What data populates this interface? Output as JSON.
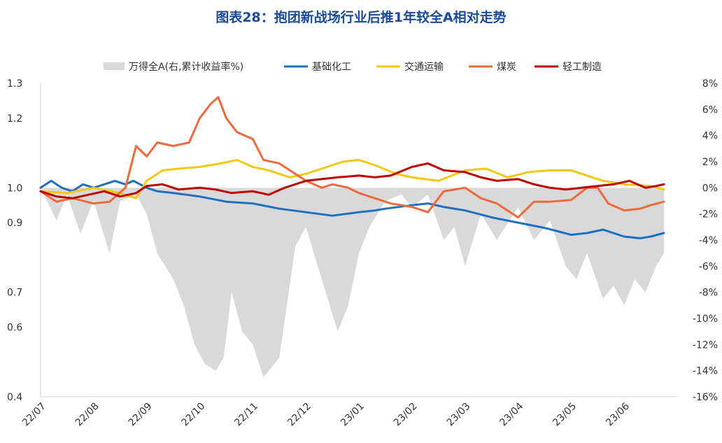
{
  "chart_data": {
    "type": "line",
    "title": "图表28：抱团新战场行业后推1年较全A相对走势",
    "categories": [
      "22/07",
      "22/08",
      "22/09",
      "22/10",
      "22/11",
      "22/12",
      "23/01",
      "23/02",
      "23/03",
      "23/04",
      "23/05",
      "23/06"
    ],
    "ylim_left": [
      0.4,
      1.3
    ],
    "yticks_left": [
      "1.3",
      "1.2",
      "1.0",
      "0.9",
      "0.7",
      "0.6",
      "0.4"
    ],
    "yticks_left_values": [
      1.3,
      1.2,
      1.0,
      0.9,
      0.7,
      0.6,
      0.4
    ],
    "ylim_right": [
      -16,
      8
    ],
    "yticks_right": [
      "8%",
      "6%",
      "4%",
      "2%",
      "0%",
      "-2%",
      "-4%",
      "-6%",
      "-8%",
      "-10%",
      "-12%",
      "-14%",
      "-16%"
    ],
    "yticks_right_values": [
      8,
      6,
      4,
      2,
      0,
      -2,
      -4,
      -6,
      -8,
      -10,
      -12,
      -14,
      -16
    ],
    "area_series": {
      "name": "万得全A(右,累计收益率%)",
      "color": "#d9d9d9",
      "axis": "right",
      "x": [
        0,
        0.3,
        0.5,
        0.75,
        1.0,
        1.3,
        1.5,
        1.8,
        2.0,
        2.2,
        2.5,
        2.7,
        2.9,
        3.1,
        3.3,
        3.45,
        3.6,
        3.8,
        4.0,
        4.2,
        4.5,
        4.8,
        5.0,
        5.3,
        5.6,
        5.8,
        6.0,
        6.2,
        6.5,
        6.8,
        7.0,
        7.3,
        7.6,
        7.8,
        8.0,
        8.3,
        8.6,
        9.0,
        9.3,
        9.6,
        9.9,
        10.1,
        10.3,
        10.6,
        10.8,
        11.0,
        11.2,
        11.4,
        11.6,
        11.75
      ],
      "values": [
        0,
        -2.5,
        -0.5,
        -3.5,
        -1,
        -5,
        -1,
        -0.5,
        -2,
        -5,
        -7,
        -9,
        -12,
        -13.5,
        -14,
        -13,
        -8,
        -11,
        -12,
        -14.5,
        -13,
        -4.5,
        -3,
        -7,
        -11,
        -9,
        -5,
        -3,
        -1,
        -0.5,
        -1.5,
        -0.5,
        -4,
        -3,
        -6,
        -2,
        -4,
        -1.5,
        -4,
        -2.5,
        -6,
        -7,
        -5,
        -8.5,
        -7.5,
        -9,
        -7,
        -8,
        -6,
        -5
      ]
    },
    "series": [
      {
        "name": "基础化工",
        "color": "#1f6fc1",
        "axis": "left",
        "x": [
          0,
          0.2,
          0.4,
          0.6,
          0.8,
          1.0,
          1.2,
          1.4,
          1.6,
          1.75,
          2.0,
          2.2,
          2.5,
          3.0,
          3.5,
          4.0,
          4.5,
          5.0,
          5.5,
          6.0,
          6.3,
          6.5,
          7.0,
          7.3,
          7.6,
          8.0,
          8.5,
          9.0,
          9.5,
          10.0,
          10.3,
          10.6,
          11.0,
          11.3,
          11.5,
          11.75
        ],
        "values": [
          1.0,
          1.02,
          1.0,
          0.99,
          1.01,
          1.0,
          1.01,
          1.02,
          1.01,
          1.02,
          1.0,
          0.99,
          0.985,
          0.975,
          0.96,
          0.955,
          0.94,
          0.93,
          0.92,
          0.93,
          0.935,
          0.94,
          0.95,
          0.955,
          0.945,
          0.935,
          0.915,
          0.9,
          0.885,
          0.865,
          0.87,
          0.88,
          0.86,
          0.855,
          0.86,
          0.87
        ]
      },
      {
        "name": "交通运输",
        "color": "#f2c811",
        "axis": "left",
        "x": [
          0,
          0.5,
          1.0,
          1.5,
          1.8,
          2.0,
          2.3,
          2.6,
          3.0,
          3.4,
          3.7,
          4.0,
          4.3,
          4.7,
          5.0,
          5.3,
          5.7,
          6.0,
          6.3,
          6.7,
          7.0,
          7.5,
          8.0,
          8.4,
          8.8,
          9.2,
          9.6,
          10.0,
          10.3,
          10.6,
          11.0,
          11.5,
          11.75
        ],
        "values": [
          0.99,
          0.985,
          1.0,
          0.985,
          0.97,
          1.02,
          1.05,
          1.055,
          1.06,
          1.07,
          1.08,
          1.06,
          1.05,
          1.03,
          1.04,
          1.055,
          1.075,
          1.08,
          1.065,
          1.04,
          1.03,
          1.02,
          1.05,
          1.055,
          1.03,
          1.045,
          1.05,
          1.05,
          1.035,
          1.02,
          1.01,
          1.005,
          0.995
        ]
      },
      {
        "name": "煤炭",
        "color": "#ee6a3b",
        "axis": "left",
        "x": [
          0,
          0.3,
          0.6,
          1.0,
          1.3,
          1.6,
          1.8,
          2.0,
          2.2,
          2.5,
          2.8,
          3.0,
          3.2,
          3.35,
          3.5,
          3.7,
          4.0,
          4.2,
          4.5,
          4.8,
          5.0,
          5.3,
          5.5,
          5.8,
          6.0,
          6.3,
          6.6,
          7.0,
          7.3,
          7.6,
          8.0,
          8.3,
          8.6,
          8.8,
          9.0,
          9.3,
          9.6,
          10.0,
          10.3,
          10.5,
          10.7,
          11.0,
          11.3,
          11.5,
          11.75
        ],
        "values": [
          0.99,
          0.96,
          0.97,
          0.955,
          0.96,
          1.0,
          1.12,
          1.09,
          1.13,
          1.12,
          1.13,
          1.2,
          1.24,
          1.26,
          1.2,
          1.16,
          1.14,
          1.08,
          1.07,
          1.04,
          1.02,
          1.0,
          1.01,
          1.0,
          0.985,
          0.97,
          0.955,
          0.945,
          0.93,
          0.99,
          1.0,
          0.97,
          0.955,
          0.935,
          0.915,
          0.96,
          0.96,
          0.965,
          1.0,
          1.0,
          0.955,
          0.935,
          0.94,
          0.95,
          0.96
        ]
      },
      {
        "name": "轻工制造",
        "color": "#c00000",
        "axis": "left",
        "x": [
          0,
          0.3,
          0.6,
          0.9,
          1.2,
          1.5,
          1.8,
          2.0,
          2.3,
          2.6,
          3.0,
          3.3,
          3.6,
          4.0,
          4.3,
          4.6,
          5.0,
          5.3,
          5.6,
          6.0,
          6.3,
          6.6,
          7.0,
          7.3,
          7.6,
          8.0,
          8.3,
          8.6,
          9.0,
          9.3,
          9.6,
          9.9,
          10.2,
          10.5,
          10.8,
          11.1,
          11.4,
          11.6,
          11.75
        ],
        "values": [
          0.99,
          0.975,
          0.97,
          0.98,
          0.99,
          0.975,
          0.985,
          1.005,
          1.01,
          0.995,
          1.0,
          0.995,
          0.985,
          0.99,
          0.98,
          1.0,
          1.02,
          1.025,
          1.03,
          1.035,
          1.03,
          1.035,
          1.06,
          1.07,
          1.05,
          1.045,
          1.03,
          1.02,
          1.025,
          1.01,
          1.0,
          0.995,
          1.0,
          1.005,
          1.01,
          1.02,
          1.0,
          1.005,
          1.01
        ]
      }
    ],
    "legend": [
      "万得全A(右,累计收益率%)",
      "基础化工",
      "交通运输",
      "煤炭",
      "轻工制造"
    ],
    "legend_position": "top"
  }
}
